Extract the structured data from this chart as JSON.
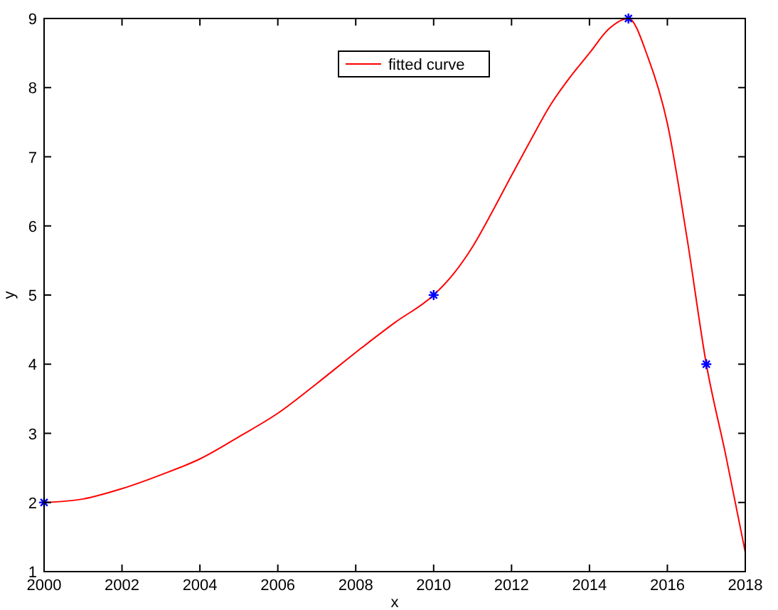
{
  "chart_data": {
    "type": "line",
    "xlabel": "x",
    "ylabel": "y",
    "xlim": [
      2000,
      2018
    ],
    "ylim": [
      1,
      9
    ],
    "xticks": [
      2000,
      2002,
      2004,
      2006,
      2008,
      2010,
      2012,
      2014,
      2016,
      2018
    ],
    "yticks": [
      1,
      2,
      3,
      4,
      5,
      6,
      7,
      8,
      9
    ],
    "grid": false,
    "legend": "top",
    "series": [
      {
        "name": "fitted curve",
        "color": "#ff0000",
        "marker": "none",
        "line_style": "solid",
        "x": [
          2000,
          2001,
          2002,
          2003,
          2004,
          2005,
          2006,
          2007,
          2008,
          2009,
          2010,
          2010.5,
          2011,
          2011.5,
          2012,
          2012.5,
          2013,
          2013.5,
          2014,
          2014.5,
          2015,
          2015.5,
          2016,
          2016.5,
          2017,
          2017.5,
          2018
        ],
        "values": [
          2,
          2.05,
          2.2,
          2.4,
          2.63,
          2.95,
          3.29,
          3.72,
          4.17,
          4.6,
          5,
          5.3,
          5.7,
          6.2,
          6.73,
          7.25,
          7.75,
          8.15,
          8.5,
          8.85,
          9,
          8.44,
          7.48,
          5.84,
          4,
          2.68,
          1.28
        ]
      },
      {
        "type": "scatter",
        "color": "#0000ff",
        "marker": "cross",
        "x": [
          2000,
          2010,
          2015,
          2017
        ],
        "values": [
          2,
          5,
          9,
          4
        ]
      }
    ]
  }
}
